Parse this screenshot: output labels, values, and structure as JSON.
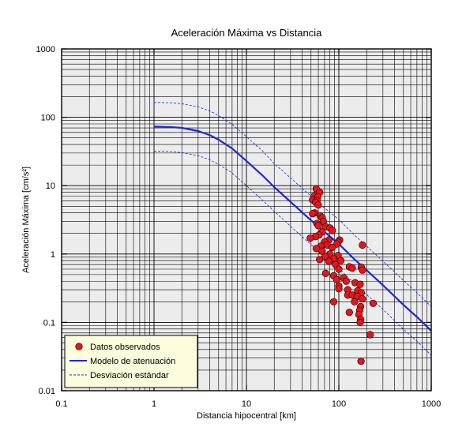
{
  "chart_data": {
    "type": "scatter",
    "title": "Aceleración Máxima vs Distancia",
    "xlabel": "Distancia hipocentral [km]",
    "ylabel": "Aceleración Máxima [cm/s²]",
    "x_scale": "log",
    "y_scale": "log",
    "xlim": [
      0.1,
      1000
    ],
    "ylim": [
      0.01,
      1000
    ],
    "x_ticks": [
      "0.1",
      "1",
      "10",
      "100",
      "1000"
    ],
    "y_ticks": [
      "0.01",
      "0.1",
      "1",
      "10",
      "100",
      "1000"
    ],
    "grid": true,
    "legend_position": "bottom-left",
    "colors": {
      "plot_background": "#ececec",
      "points": "#e8141a",
      "model_line": "#1a28d6",
      "legend_background": "#fdfcdc"
    },
    "series": [
      {
        "name": "Datos observados",
        "kind": "scatter",
        "points": [
          [
            57,
            9.0
          ],
          [
            62,
            8.0
          ],
          [
            54,
            7.0
          ],
          [
            59,
            6.8
          ],
          [
            52,
            6.2
          ],
          [
            58,
            6.0
          ],
          [
            56,
            5.7
          ],
          [
            60,
            5.2
          ],
          [
            55,
            4.0
          ],
          [
            52,
            3.9
          ],
          [
            63,
            3.6
          ],
          [
            66,
            3.4
          ],
          [
            68,
            3.0
          ],
          [
            58,
            2.8
          ],
          [
            60,
            2.6
          ],
          [
            72,
            2.5
          ],
          [
            80,
            2.4
          ],
          [
            85,
            2.2
          ],
          [
            66,
            2.1
          ],
          [
            61,
            1.9
          ],
          [
            56,
            1.8
          ],
          [
            49,
            1.7
          ],
          [
            78,
            1.6
          ],
          [
            102,
            1.6
          ],
          [
            70,
            1.5
          ],
          [
            98,
            1.5
          ],
          [
            75,
            1.35
          ],
          [
            95,
            1.4
          ],
          [
            180,
            1.35
          ],
          [
            64,
            1.3
          ],
          [
            57,
            1.2
          ],
          [
            85,
            1.25
          ],
          [
            66,
            1.1
          ],
          [
            80,
            1.0
          ],
          [
            98,
            0.95
          ],
          [
            71,
            0.92
          ],
          [
            88,
            0.85
          ],
          [
            62,
            0.83
          ],
          [
            105,
            0.8
          ],
          [
            78,
            0.78
          ],
          [
            92,
            0.7
          ],
          [
            130,
            0.65
          ],
          [
            175,
            0.64
          ],
          [
            140,
            0.62
          ],
          [
            100,
            0.6
          ],
          [
            180,
            0.58
          ],
          [
            72,
            0.52
          ],
          [
            88,
            0.48
          ],
          [
            112,
            0.45
          ],
          [
            95,
            0.42
          ],
          [
            120,
            0.4
          ],
          [
            150,
            0.38
          ],
          [
            170,
            0.36
          ],
          [
            100,
            0.34
          ],
          [
            100,
            0.31
          ],
          [
            125,
            0.3
          ],
          [
            160,
            0.29
          ],
          [
            175,
            0.27
          ],
          [
            125,
            0.25
          ],
          [
            140,
            0.25
          ],
          [
            158,
            0.24
          ],
          [
            180,
            0.22
          ],
          [
            88,
            0.2
          ],
          [
            148,
            0.2
          ],
          [
            235,
            0.19
          ],
          [
            172,
            0.17
          ],
          [
            168,
            0.15
          ],
          [
            130,
            0.14
          ],
          [
            165,
            0.13
          ],
          [
            172,
            0.11
          ],
          [
            170,
            0.1
          ],
          [
            218,
            0.066
          ],
          [
            174,
            0.027
          ]
        ]
      },
      {
        "name": "Modelo de atenuación",
        "kind": "line",
        "points": [
          [
            1,
            73
          ],
          [
            1.5,
            72
          ],
          [
            2,
            70
          ],
          [
            3,
            63
          ],
          [
            4,
            55
          ],
          [
            5,
            47
          ],
          [
            7,
            35
          ],
          [
            10,
            23
          ],
          [
            15,
            14
          ],
          [
            20,
            9.5
          ],
          [
            30,
            5.8
          ],
          [
            50,
            3.1
          ],
          [
            70,
            2.1
          ],
          [
            100,
            1.4
          ],
          [
            150,
            0.82
          ],
          [
            200,
            0.58
          ],
          [
            300,
            0.35
          ],
          [
            500,
            0.18
          ],
          [
            700,
            0.12
          ],
          [
            1000,
            0.075
          ]
        ]
      },
      {
        "name": "Desviación estándar",
        "kind": "dashed",
        "band": "upper",
        "points": [
          [
            1,
            165
          ],
          [
            1.5,
            163
          ],
          [
            2,
            158
          ],
          [
            3,
            142
          ],
          [
            4,
            124
          ],
          [
            5,
            106
          ],
          [
            7,
            79
          ],
          [
            10,
            52
          ],
          [
            15,
            32
          ],
          [
            20,
            21
          ],
          [
            30,
            13
          ],
          [
            50,
            7.0
          ],
          [
            70,
            4.7
          ],
          [
            100,
            3.2
          ],
          [
            150,
            1.85
          ],
          [
            200,
            1.3
          ],
          [
            300,
            0.79
          ],
          [
            500,
            0.41
          ],
          [
            700,
            0.27
          ],
          [
            1000,
            0.17
          ]
        ]
      },
      {
        "name": "Desviación estándar",
        "kind": "dashed",
        "band": "lower",
        "points": [
          [
            1,
            32
          ],
          [
            1.5,
            31.5
          ],
          [
            2,
            30.5
          ],
          [
            3,
            27.5
          ],
          [
            4,
            24
          ],
          [
            5,
            20.5
          ],
          [
            7,
            15.3
          ],
          [
            10,
            10
          ],
          [
            15,
            6.1
          ],
          [
            20,
            4.2
          ],
          [
            30,
            2.55
          ],
          [
            50,
            1.37
          ],
          [
            70,
            0.93
          ],
          [
            100,
            0.62
          ],
          [
            150,
            0.36
          ],
          [
            200,
            0.255
          ],
          [
            300,
            0.155
          ],
          [
            500,
            0.079
          ],
          [
            700,
            0.053
          ],
          [
            1000,
            0.033
          ]
        ]
      }
    ],
    "legend": [
      {
        "label": "Datos observados",
        "symbol": "dot"
      },
      {
        "label": "Modelo de atenuación",
        "symbol": "line"
      },
      {
        "label": "Desviación estándar",
        "symbol": "dashed"
      }
    ]
  }
}
